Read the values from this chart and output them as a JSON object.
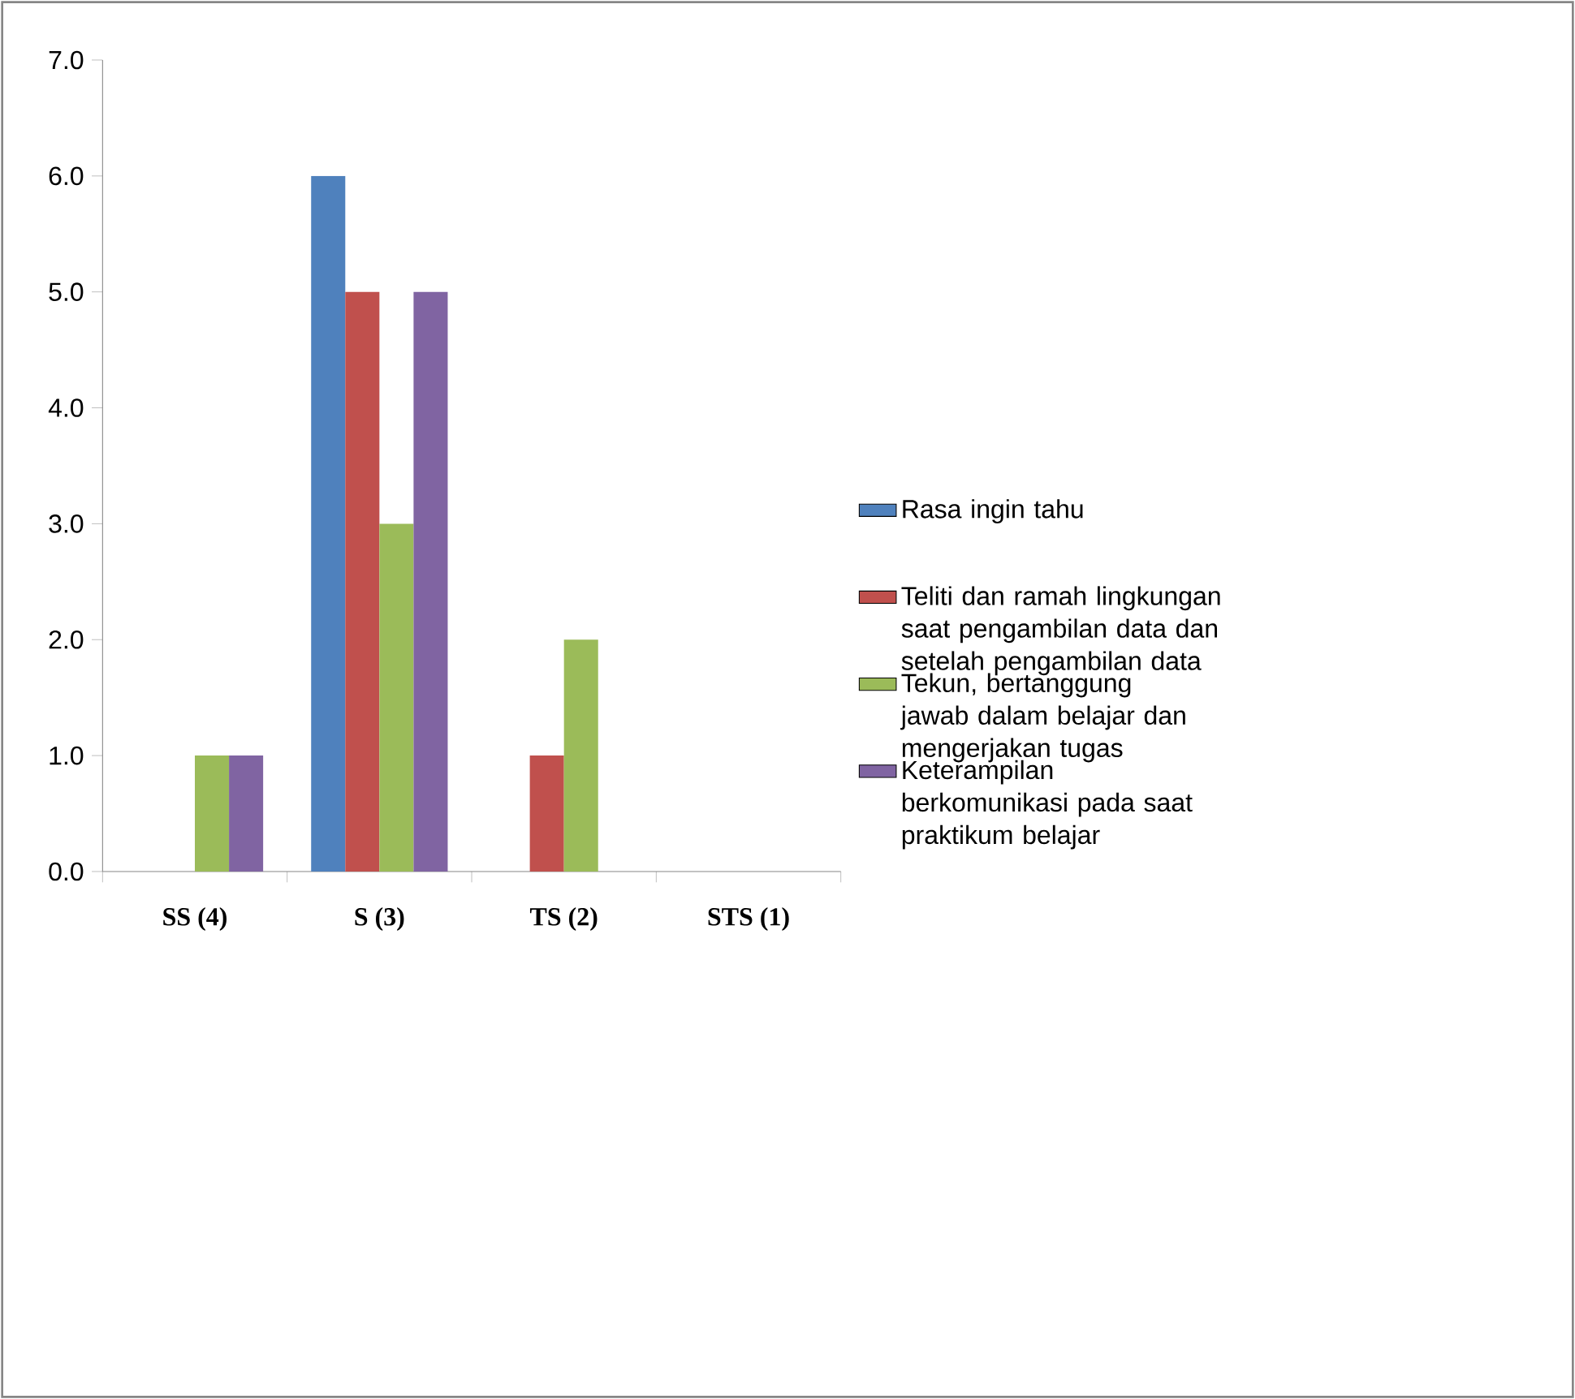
{
  "chart_data": {
    "type": "bar",
    "categories": [
      "SS (4)",
      "S (3)",
      "TS (2)",
      "STS (1)"
    ],
    "series": [
      {
        "name": "Rasa ingin tahu",
        "color": "#4f81bd",
        "values": [
          0,
          6,
          0,
          0
        ]
      },
      {
        "name": "Teliti dan ramah lingkungan saat pengambilan data dan setelah pengambilan data",
        "color": "#c0504d",
        "values": [
          0,
          5,
          1,
          0
        ]
      },
      {
        "name": "Tekun, bertanggung jawab dalam belajar dan mengerjakan tugas",
        "color": "#9bbb59",
        "values": [
          1,
          3,
          2,
          0
        ]
      },
      {
        "name": "Keterampilan berkomunikasi pada saat praktikum belajar",
        "color": "#8064a2",
        "values": [
          1,
          5,
          0,
          0
        ]
      }
    ],
    "ylim": [
      0,
      7
    ],
    "yticks": [
      {
        "value": 0,
        "label": "0.0"
      },
      {
        "value": 1,
        "label": "1.0"
      },
      {
        "value": 2,
        "label": "2.0"
      },
      {
        "value": 3,
        "label": "3.0"
      },
      {
        "value": 4,
        "label": "4.0"
      },
      {
        "value": 5,
        "label": "5.0"
      },
      {
        "value": 6,
        "label": "6.0"
      },
      {
        "value": 7,
        "label": "7.0"
      }
    ],
    "legend": "right"
  }
}
